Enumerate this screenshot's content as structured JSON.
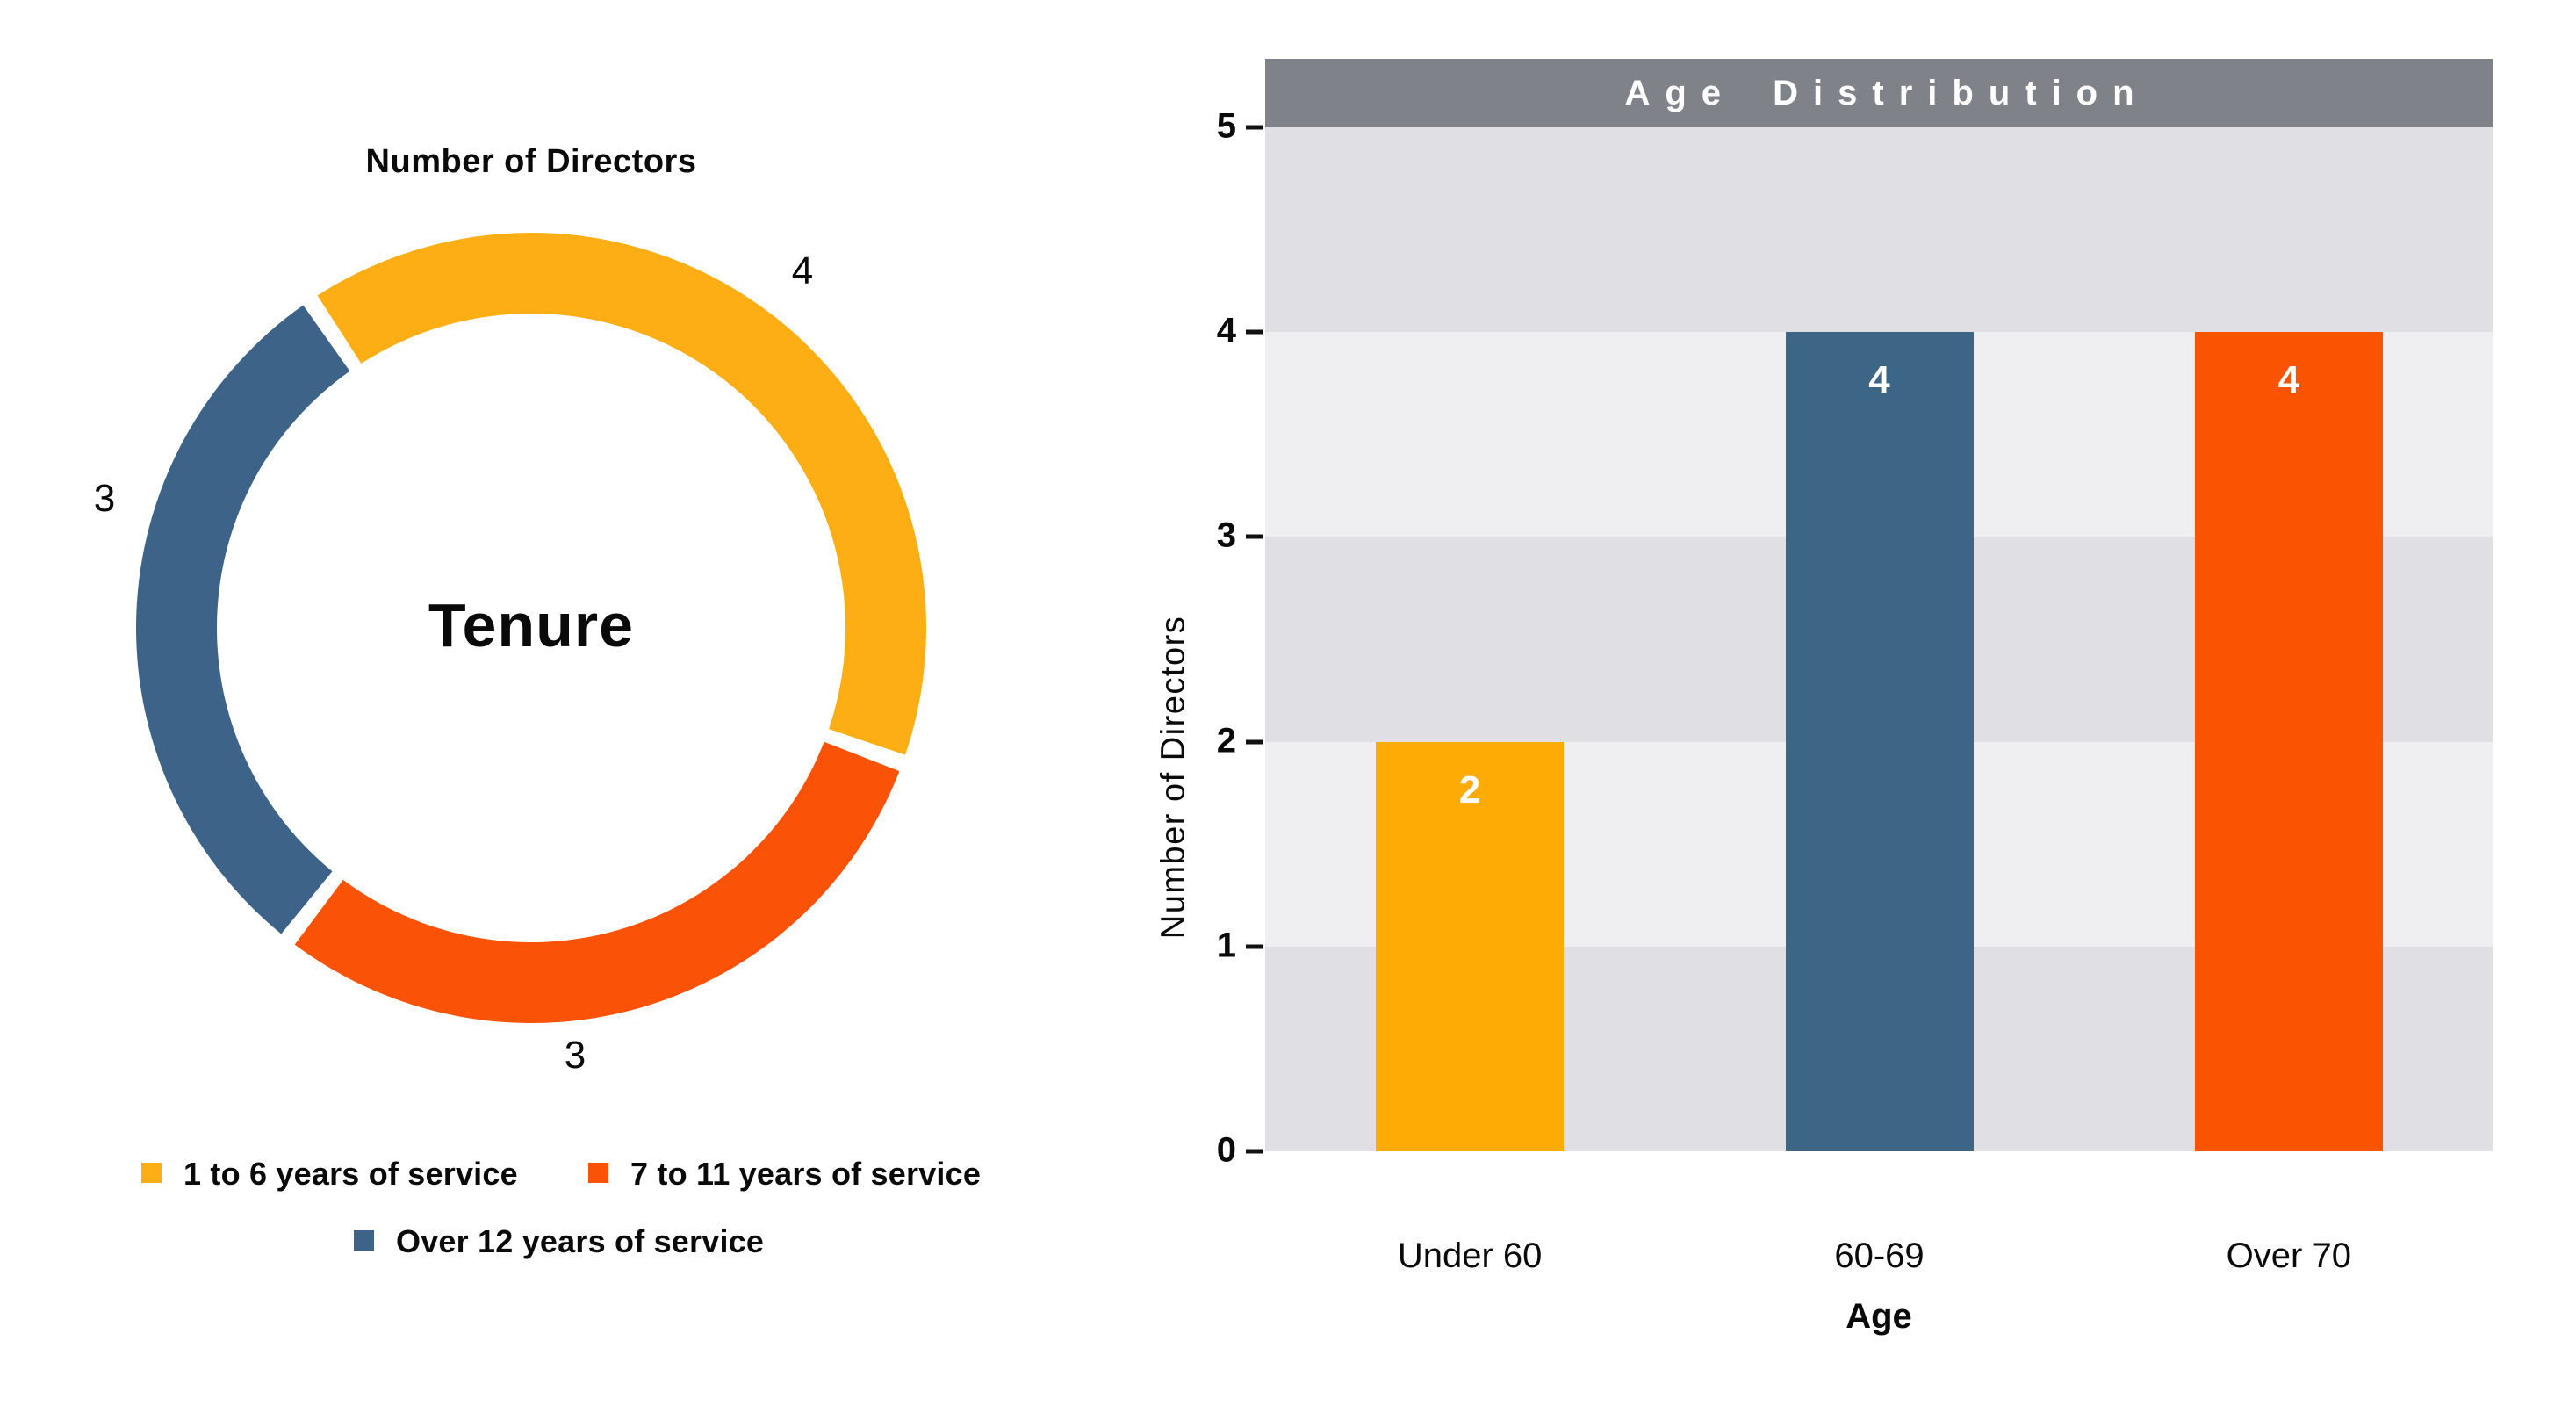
{
  "chart_data": [
    {
      "type": "donut",
      "title": "Number of Directors",
      "center_label": "Tenure",
      "series": [
        {
          "label": "1 to 6 years of service",
          "value": 4,
          "display_value": "4",
          "color": "#FCAE14"
        },
        {
          "label": "7 to 11 years of service",
          "value": 3,
          "display_value": "3",
          "color": "#FA5206"
        },
        {
          "label": "Over 12 years of service",
          "value": 3,
          "display_value": "3",
          "color": "#3D6488"
        }
      ],
      "start_angle_deg": -34,
      "gap_deg": 2.5,
      "legend_position": "bottom",
      "gap_color": "#FFFFFF"
    },
    {
      "type": "bar",
      "title": "Age Distribution",
      "title_color": "#FFFFFF",
      "header_color": "#808289",
      "categories": [
        "Under 60",
        "60-69",
        "Over 70"
      ],
      "values": [
        2,
        4,
        4
      ],
      "data_labels": [
        "2",
        "4",
        "4"
      ],
      "bar_colors": [
        "#FFAB05",
        "#3D6586",
        "#FA5301"
      ],
      "xlabel": "Age",
      "ylabel": "Number of Directors",
      "ylim": [
        0,
        5
      ],
      "yticks": [
        "0",
        "1",
        "2",
        "3",
        "4",
        "5"
      ],
      "grid": "banded-rows",
      "band_colors": [
        "#E0E0E4",
        "#EFEFF1"
      ],
      "legend_position": "none"
    }
  ]
}
